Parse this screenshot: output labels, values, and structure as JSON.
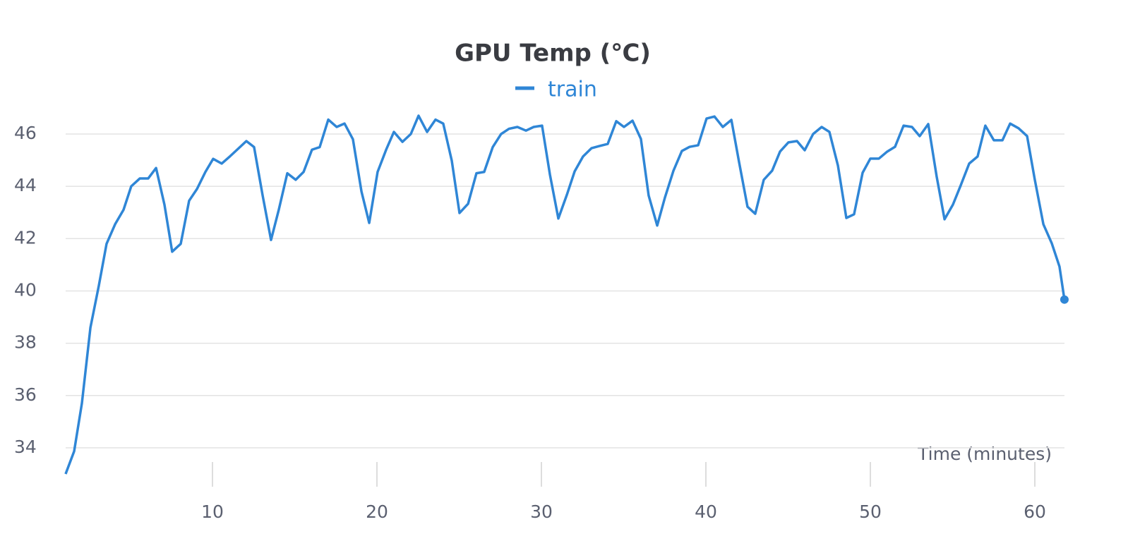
{
  "chart_data": {
    "type": "line",
    "title": "GPU Temp (℃)",
    "x_label": "Time (minutes)",
    "x": [
      1.07,
      1.59,
      2.06,
      2.58,
      3.09,
      3.56,
      4.08,
      4.59,
      5.06,
      5.58,
      6.09,
      6.57,
      7.08,
      7.55,
      8.07,
      8.58,
      9.06,
      9.57,
      10.04,
      10.56,
      11.07,
      11.55,
      12.06,
      12.53,
      13.05,
      13.56,
      14.03,
      14.55,
      15.06,
      15.54,
      16.05,
      16.52,
      17.04,
      17.55,
      18.03,
      18.54,
      19.06,
      19.53,
      20.04,
      20.56,
      21.03,
      21.55,
      22.06,
      22.53,
      23.05,
      23.56,
      24.03,
      24.55,
      25.02,
      25.54,
      26.05,
      26.52,
      27.04,
      27.55,
      28.03,
      28.54,
      29.06,
      29.53,
      30.04,
      30.52,
      31.03,
      31.55,
      32.02,
      32.53,
      33.05,
      33.52,
      34.03,
      34.55,
      35.02,
      35.54,
      36.05,
      36.52,
      37.04,
      37.51,
      38.03,
      38.54,
      39.01,
      39.53,
      40.04,
      40.52,
      41.03,
      41.55,
      42.02,
      42.53,
      43.0,
      43.52,
      44.03,
      44.51,
      45.02,
      45.54,
      46.01,
      46.52,
      47.04,
      47.51,
      48.03,
      48.54,
      49.01,
      49.53,
      50.0,
      50.52,
      51.03,
      51.5,
      52.02,
      52.53,
      53.0,
      53.52,
      54.03,
      54.51,
      55.02,
      55.49,
      56.01,
      56.52,
      56.99,
      57.51,
      58.03,
      58.5,
      59.01,
      59.53,
      60.0,
      60.52,
      61.03,
      61.5,
      61.8
    ],
    "series": [
      {
        "name": "train",
        "color": "#2f86d6",
        "values": [
          33.0,
          33.87,
          35.7,
          38.6,
          40.2,
          41.8,
          42.55,
          43.1,
          44.0,
          44.3,
          44.3,
          44.7,
          43.3,
          41.5,
          41.8,
          43.45,
          43.9,
          44.55,
          45.05,
          44.87,
          45.15,
          45.43,
          45.73,
          45.5,
          43.65,
          41.95,
          43.1,
          44.5,
          44.25,
          44.55,
          45.4,
          45.5,
          46.55,
          46.27,
          46.4,
          45.8,
          43.8,
          42.6,
          44.55,
          45.4,
          46.08,
          45.7,
          46.0,
          46.7,
          46.08,
          46.55,
          46.4,
          44.98,
          42.98,
          43.33,
          44.5,
          44.55,
          45.5,
          46.0,
          46.2,
          46.27,
          46.13,
          46.27,
          46.32,
          44.44,
          42.77,
          43.68,
          44.57,
          45.14,
          45.46,
          45.54,
          45.62,
          46.49,
          46.27,
          46.51,
          45.81,
          43.65,
          42.5,
          43.57,
          44.6,
          45.35,
          45.51,
          45.57,
          46.59,
          46.67,
          46.27,
          46.54,
          44.92,
          43.22,
          42.95,
          44.25,
          44.6,
          45.33,
          45.68,
          45.73,
          45.38,
          46.0,
          46.27,
          46.08,
          44.79,
          42.79,
          42.93,
          44.52,
          45.06,
          45.06,
          45.33,
          45.51,
          46.32,
          46.27,
          45.92,
          46.38,
          44.38,
          42.74,
          43.3,
          44.03,
          44.87,
          45.14,
          46.32,
          45.76,
          45.76,
          46.4,
          46.22,
          45.92,
          44.25,
          42.55,
          41.82,
          40.93,
          39.67
        ]
      }
    ],
    "xlim": [
      1,
      62
    ],
    "ylim": [
      33,
      47.2
    ],
    "xticks": [
      10,
      20,
      30,
      40,
      50,
      60
    ],
    "yticks": [
      34,
      36,
      38,
      40,
      42,
      44,
      46
    ],
    "grid": true
  }
}
